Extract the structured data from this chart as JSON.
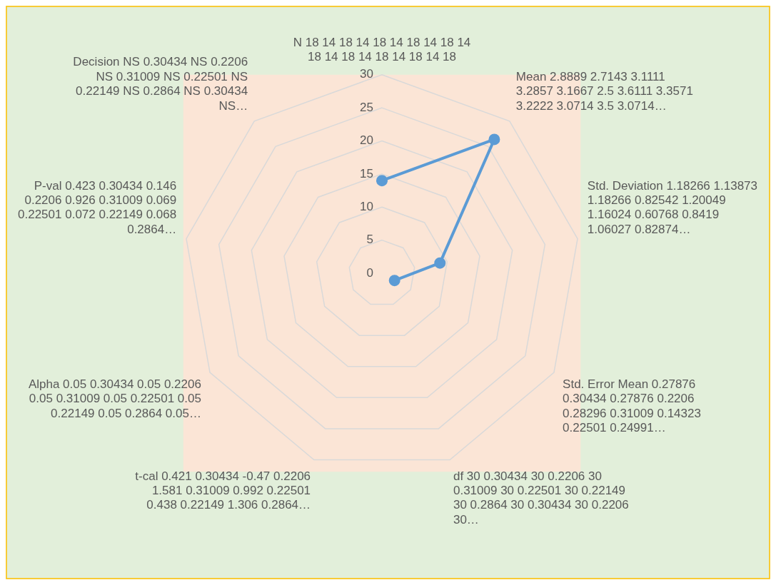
{
  "chart_data": {
    "type": "radar",
    "categories": [
      "N 18 14 18 14 18 14 18 14 18 14 18 14 18 14 18 14 18 14 18",
      "Mean 2.8889 2.7143 3.1111 3.2857 3.1667 2.5 3.6111 3.3571 3.2222 3.0714 3.5 3.0714…",
      "Std. Deviation 1.18266 1.13873 1.18266 0.82542 1.20049 1.16024 0.60768 0.8419 1.06027 0.82874…",
      "Std. Error Mean 0.27876 0.30434 0.27876 0.2206 0.28296 0.31009 0.14323 0.22501 0.24991…",
      "df 30 0.30434 30 0.2206 30 0.31009 30 0.22501 30 0.22149 30 0.2864 30 0.30434 30 0.2206 30…",
      "t-cal 0.421 0.30434 -0.47 0.2206 1.581 0.31009 0.992 0.22501 0.438 0.22149 1.306 0.2864…",
      "Alpha 0.05 0.30434 0.05 0.2206 0.05 0.31009 0.05 0.22501 0.05 0.22149 0.05 0.2864 0.05…",
      "P-val 0.423 0.30434 0.146 0.2206 0.926 0.31009 0.069 0.22501 0.072 0.22149 0.068 0.2864…",
      "Decision NS 0.30434 NS 0.2206 NS 0.31009 NS 0.22501 NS 0.22149 NS 0.2864 NS 0.30434 NS…"
    ],
    "series": [
      {
        "color": "#5b9bd5",
        "values": [
          14,
          26.4,
          8.9,
          2.2,
          null,
          null,
          null,
          null,
          null
        ]
      }
    ],
    "ylim": [
      0,
      30
    ],
    "yticks": [
      0,
      5,
      10,
      15,
      20,
      25,
      30
    ],
    "grid": true,
    "marker": "circle"
  }
}
